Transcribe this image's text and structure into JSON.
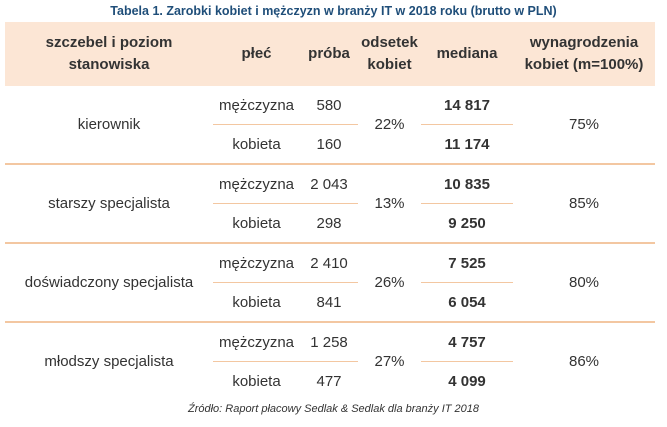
{
  "title": "Tabela 1. Zarobki kobiet i mężczyzn w branży IT w 2018 roku (brutto w PLN)",
  "headers": {
    "position": "szczebel i poziom stanowiska",
    "sex": "płeć",
    "sample": "próba",
    "share": "odsetek kobiet",
    "median": "mediana",
    "ratio": "wynagrodzenia kobiet (m=100%)"
  },
  "rows": [
    {
      "position": "kierownik",
      "men": {
        "sex": "mężczyzna",
        "sample": "580",
        "median": "14 817"
      },
      "women": {
        "sex": "kobieta",
        "sample": "160",
        "median": "11 174"
      },
      "share": "22%",
      "ratio": "75%"
    },
    {
      "position": "starszy specjalista",
      "men": {
        "sex": "mężczyzna",
        "sample": "2 043",
        "median": "10 835"
      },
      "women": {
        "sex": "kobieta",
        "sample": "298",
        "median": "9 250"
      },
      "share": "13%",
      "ratio": "85%"
    },
    {
      "position": "doświadczony specjalista",
      "men": {
        "sex": "mężczyzna",
        "sample": "2 410",
        "median": "7 525"
      },
      "women": {
        "sex": "kobieta",
        "sample": "841",
        "median": "6 054"
      },
      "share": "26%",
      "ratio": "80%"
    },
    {
      "position": "młodszy specjalista",
      "men": {
        "sex": "mężczyzna",
        "sample": "1 258",
        "median": "4 757"
      },
      "women": {
        "sex": "kobieta",
        "sample": "477",
        "median": "4 099"
      },
      "share": "27%",
      "ratio": "86%"
    }
  ],
  "source": "Źródło: Raport płacowy Sedlak & Sedlak dla branży IT 2018",
  "colors": {
    "header_bg": "#fce6d5",
    "divider": "#f3c7a1",
    "title": "#1f4e79"
  }
}
